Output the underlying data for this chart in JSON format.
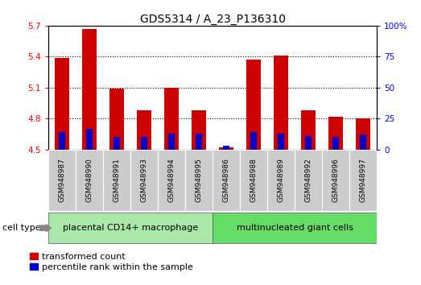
{
  "title": "GDS5314 / A_23_P136310",
  "samples": [
    "GSM948987",
    "GSM948990",
    "GSM948991",
    "GSM948993",
    "GSM948994",
    "GSM948995",
    "GSM948986",
    "GSM948988",
    "GSM948989",
    "GSM948992",
    "GSM948996",
    "GSM948997"
  ],
  "transformed_count": [
    5.39,
    5.67,
    5.09,
    4.88,
    5.1,
    4.88,
    4.52,
    5.37,
    5.41,
    4.88,
    4.82,
    4.8
  ],
  "percentile_rank": [
    14,
    17,
    10,
    10,
    13,
    13,
    3,
    14,
    13,
    11,
    10,
    12
  ],
  "groups": [
    {
      "label": "placental CD14+ macrophage",
      "start": 0,
      "end": 6,
      "color": "#aae8aa"
    },
    {
      "label": "multinucleated giant cells",
      "start": 6,
      "end": 12,
      "color": "#66dd66"
    }
  ],
  "ylim_left": [
    4.5,
    5.7
  ],
  "ylim_right": [
    0,
    100
  ],
  "yticks_left": [
    4.5,
    4.8,
    5.1,
    5.4,
    5.7
  ],
  "yticks_right": [
    0,
    25,
    50,
    75,
    100
  ],
  "bar_color": "#cc0000",
  "blue_color": "#0000cc",
  "bar_width": 0.55,
  "background_color": "#ffffff",
  "plot_bg_color": "#ffffff",
  "legend_red_label": "transformed count",
  "legend_blue_label": "percentile rank within the sample",
  "cell_type_label": "cell type",
  "title_fontsize": 10,
  "tick_fontsize": 7.5,
  "label_fontsize": 6.5,
  "legend_fontsize": 8,
  "group_fontsize": 8,
  "grid_lines": [
    4.8,
    5.1,
    5.4
  ]
}
